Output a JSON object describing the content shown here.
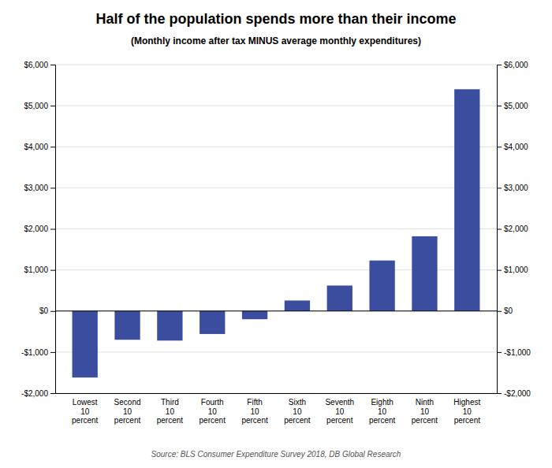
{
  "chart_data": {
    "type": "bar",
    "title": "Half of the population spends more than their income",
    "subtitle": "(Monthly income after tax MINUS average monthly expenditures)",
    "annotations": [
      "Source: BLS Consumer Expenditure Survey 2018, DB Global Research"
    ],
    "categories": [
      "Lowest\n10\npercent",
      "Second\n10\npercent",
      "Third\n10\npercent",
      "Fourth\n10\npercent",
      "Fifth\n10\npercent",
      "Sixth\n10\npercent",
      "Seventh\n10\npercent",
      "Eighth\n10\npercent",
      "Ninth\n10\npercent",
      "Highest\n10\npercent"
    ],
    "values": [
      -1620,
      -700,
      -720,
      -560,
      -200,
      255,
      620,
      1230,
      1820,
      5400
    ],
    "color": "#3A4D9F",
    "ylim": [
      -2000,
      6000
    ],
    "yticks": [
      {
        "value": -2000,
        "label": "-$2,000"
      },
      {
        "value": -1000,
        "label": "-$1,000"
      },
      {
        "value": 0,
        "label": "$0"
      },
      {
        "value": 1000,
        "label": "$1,000"
      },
      {
        "value": 2000,
        "label": "$2,000"
      },
      {
        "value": 3000,
        "label": "$3,000"
      },
      {
        "value": 4000,
        "label": "$4,000"
      },
      {
        "value": 5000,
        "label": "$5,000"
      },
      {
        "value": 6000,
        "label": "$6,000"
      }
    ],
    "grid": true
  }
}
